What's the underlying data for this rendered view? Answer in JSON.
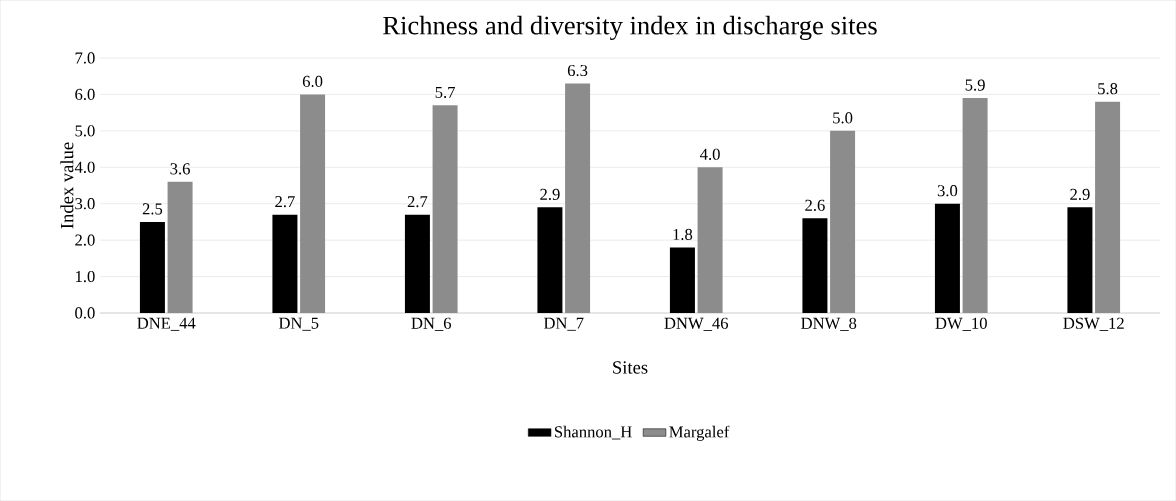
{
  "chart_data": {
    "type": "bar",
    "title": "Richness and diversity index in discharge sites",
    "xlabel": "Sites",
    "ylabel": "Index value",
    "categories": [
      "DNE_44",
      "DN_5",
      "DN_6",
      "DN_7",
      "DNW_46",
      "DNW_8",
      "DW_10",
      "DSW_12"
    ],
    "series": [
      {
        "name": "Shannon_H",
        "color": "#000000",
        "values": [
          2.5,
          2.7,
          2.7,
          2.9,
          1.8,
          2.6,
          3.0,
          2.9
        ],
        "value_labels": [
          "2.5",
          "2.7",
          "2.7",
          "2.9",
          "1.8",
          "2.6",
          "3.0",
          "2.9"
        ]
      },
      {
        "name": "Margalef",
        "color": "#8c8c8c",
        "values": [
          3.6,
          6.0,
          5.7,
          6.3,
          4.0,
          5.0,
          5.9,
          5.8
        ],
        "value_labels": [
          "3.6",
          "6.0",
          "5.7",
          "6.3",
          "4.0",
          "5.0",
          "5.9",
          "5.8"
        ]
      }
    ],
    "ylim": [
      0,
      7
    ],
    "yticks": [
      {
        "value": 0,
        "label": "0.0"
      },
      {
        "value": 1,
        "label": "1.0"
      },
      {
        "value": 2,
        "label": "2.0"
      },
      {
        "value": 3,
        "label": "3.0"
      },
      {
        "value": 4,
        "label": "4.0"
      },
      {
        "value": 5,
        "label": "5.0"
      },
      {
        "value": 6,
        "label": "6.0"
      },
      {
        "value": 7,
        "label": "7.0"
      }
    ],
    "grid": "y",
    "legend": "bottom"
  }
}
